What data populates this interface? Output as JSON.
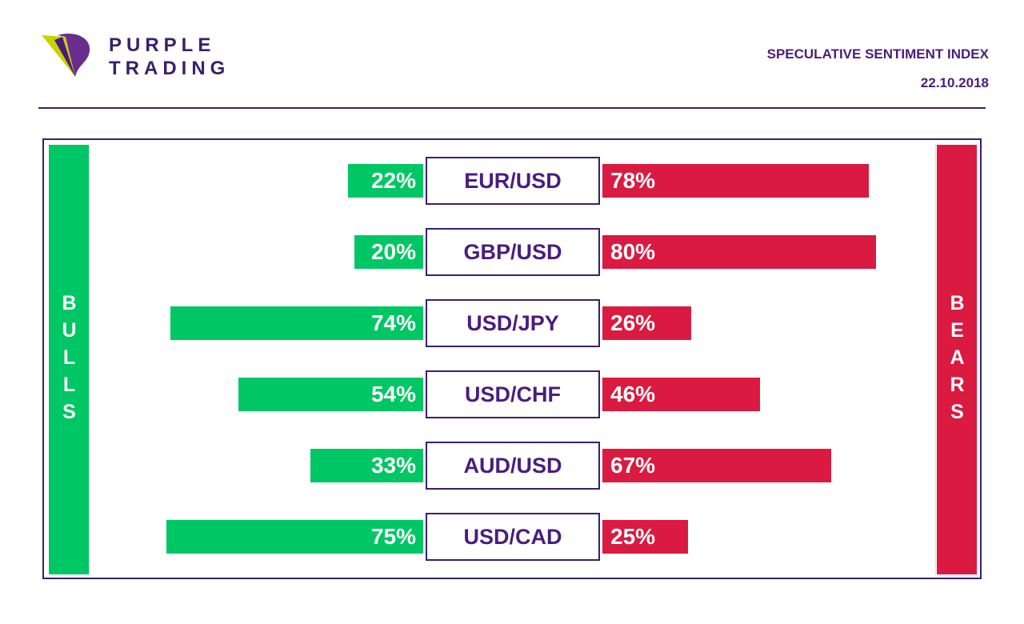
{
  "brand": {
    "line1": "PURPLE",
    "line2": "TRADING"
  },
  "header": {
    "title": "SPECULATIVE SENTIMENT INDEX",
    "date": "22.10.2018"
  },
  "colors": {
    "bull": "#00c764",
    "bear": "#da1a40",
    "accent": "#3b1f6b",
    "logo_purple": "#6a2c8e",
    "logo_lime": "#c8d400"
  },
  "chart_data": {
    "type": "bar",
    "side_labels": {
      "left": "BULLS",
      "right": "BEARS"
    },
    "categories": [
      "EUR/USD",
      "GBP/USD",
      "USD/JPY",
      "USD/CHF",
      "AUD/USD",
      "USD/CAD"
    ],
    "series": [
      {
        "name": "BULLS",
        "values": [
          22,
          20,
          74,
          54,
          33,
          75
        ],
        "labels": [
          "22%",
          "20%",
          "74%",
          "54%",
          "33%",
          "75%"
        ]
      },
      {
        "name": "BEARS",
        "values": [
          78,
          80,
          26,
          46,
          67,
          25
        ],
        "labels": [
          "78%",
          "80%",
          "26%",
          "46%",
          "67%",
          "25%"
        ]
      }
    ]
  }
}
